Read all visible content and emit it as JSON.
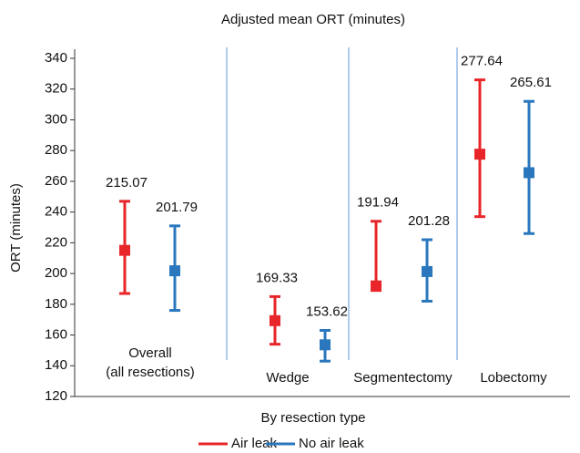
{
  "chart_data": {
    "type": "errorbar",
    "title": "Adjusted mean ORT (minutes)",
    "x_label": "By resection type",
    "y_label": "ORT (minutes)",
    "categories": [
      "Overall\n(all resections)",
      "Wedge",
      "Segmentectomy",
      "Lobectomy"
    ],
    "series": [
      {
        "name": "Air leak",
        "color": "#e8262a",
        "values": [
          215.07,
          169.33,
          191.94,
          277.64
        ],
        "lower": [
          187,
          154,
          189,
          237
        ],
        "upper": [
          247,
          185,
          234,
          326
        ]
      },
      {
        "name": "No air leak",
        "color": "#2a77bd",
        "values": [
          201.79,
          153.62,
          201.28,
          265.61
        ],
        "lower": [
          176,
          143,
          182,
          226
        ],
        "upper": [
          231,
          163,
          222,
          312
        ]
      }
    ],
    "ylim": [
      120,
      340
    ],
    "yticks": [
      120,
      140,
      160,
      180,
      200,
      220,
      240,
      260,
      280,
      300,
      320,
      340
    ],
    "grid": false,
    "legend": "bottom"
  }
}
